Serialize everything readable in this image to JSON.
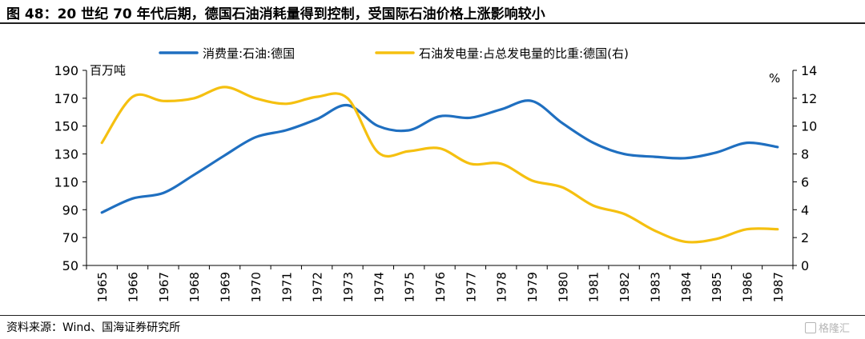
{
  "title": "图 48：20 世纪 70 年代后期，德国石油消耗量得到控制，受国际石油价格上涨影响较小",
  "source": "资料来源：Wind、国海证券研究所",
  "watermark": "格隆汇",
  "chart_data": {
    "type": "line",
    "x": [
      "1965",
      "1966",
      "1967",
      "1968",
      "1969",
      "1970",
      "1971",
      "1972",
      "1973",
      "1974",
      "1975",
      "1976",
      "1977",
      "1978",
      "1979",
      "1980",
      "1981",
      "1982",
      "1983",
      "1984",
      "1985",
      "1986",
      "1987"
    ],
    "left_unit": "百万吨",
    "right_unit": "%",
    "left_ylim": [
      50,
      190
    ],
    "left_ticks": [
      50,
      70,
      90,
      110,
      130,
      150,
      170,
      190
    ],
    "right_ylim": [
      0,
      14
    ],
    "right_ticks": [
      0,
      2,
      4,
      6,
      8,
      10,
      12,
      14
    ],
    "grid": false,
    "legend_position": "top",
    "series": [
      {
        "name": "消费量:石油:德国",
        "axis": "left",
        "color": "#1f6fc0",
        "values": [
          88,
          98,
          102,
          115,
          129,
          142,
          147,
          155,
          165,
          150,
          147,
          157,
          156,
          162,
          168,
          152,
          138,
          130,
          128,
          127,
          131,
          138,
          135
        ]
      },
      {
        "name": "石油发电量:占总发电量的比重:德国(右)",
        "axis": "right",
        "color": "#f5c010",
        "values": [
          8.8,
          12.1,
          11.8,
          12.0,
          12.8,
          12.0,
          11.6,
          12.1,
          12.0,
          8.1,
          8.2,
          8.4,
          7.3,
          7.3,
          6.1,
          5.6,
          4.3,
          3.7,
          2.5,
          1.7,
          1.9,
          2.6,
          2.6
        ]
      }
    ]
  }
}
